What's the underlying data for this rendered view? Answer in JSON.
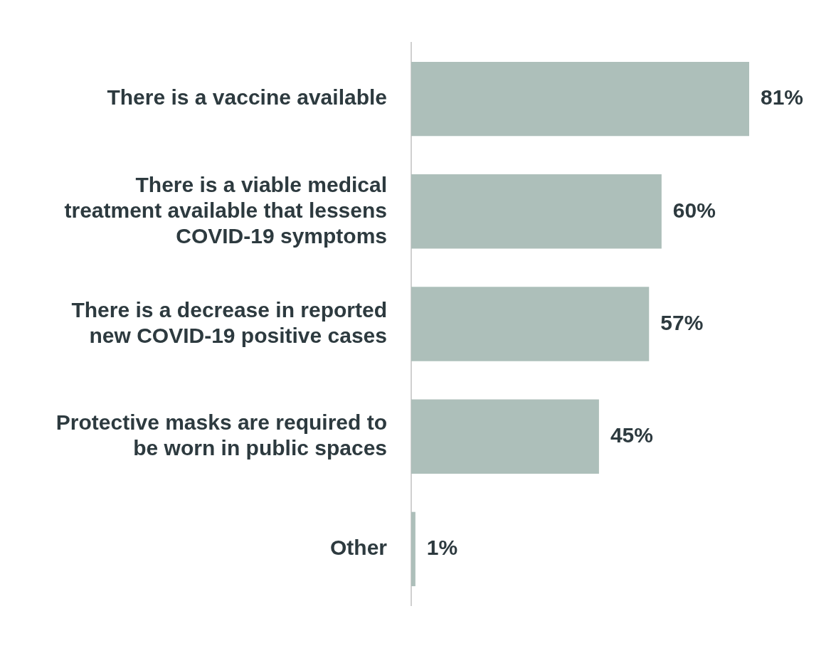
{
  "chart_data": {
    "type": "bar",
    "orientation": "horizontal",
    "categories": [
      "There is a vaccine available",
      "There is a viable medical treatment available that lessens COVID-19 symptoms",
      "There is a decrease in reported new COVID-19 positive cases",
      "Protective masks are required to be worn in public spaces",
      "Other"
    ],
    "values": [
      81,
      60,
      57,
      45,
      1
    ],
    "value_labels": [
      "81%",
      "60%",
      "57%",
      "45%",
      "1%"
    ],
    "color": "#adbfba",
    "grid": false,
    "legend": false,
    "tick_labels": "y"
  }
}
